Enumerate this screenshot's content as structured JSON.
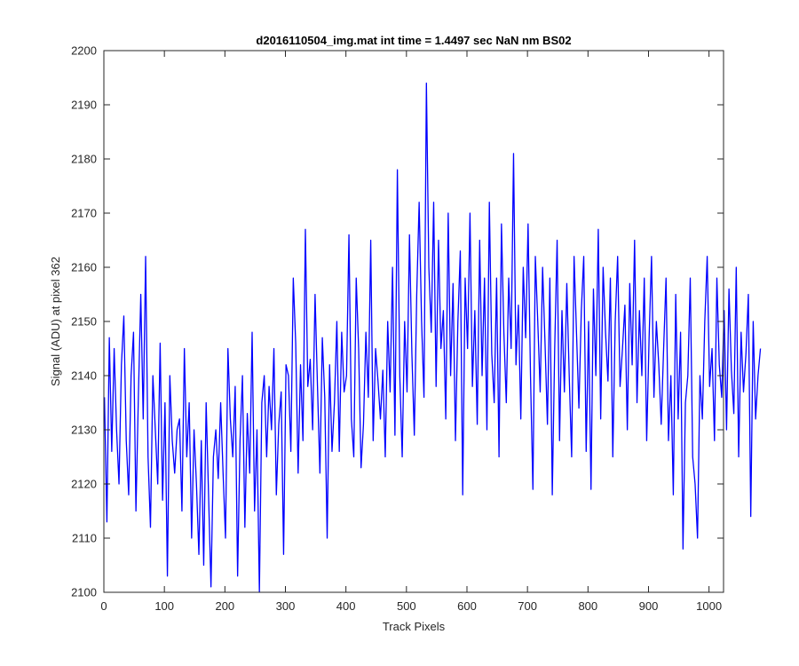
{
  "chart_data": {
    "type": "line",
    "title": "d2016110504_img.mat int time = 1.4497 sec  NaN nm BS02",
    "xlabel": "Track Pixels",
    "ylabel": "Signal (ADU) at pixel 362",
    "xlim": [
      0,
      1024
    ],
    "ylim": [
      2100,
      2200
    ],
    "xticks": [
      0,
      100,
      200,
      300,
      400,
      500,
      600,
      700,
      800,
      900,
      1000
    ],
    "yticks": [
      2100,
      2110,
      2120,
      2130,
      2140,
      2150,
      2160,
      2170,
      2180,
      2190,
      2200
    ],
    "grid": false,
    "series": [
      {
        "color": "#0000ff",
        "x_start": 1,
        "x_step": 4,
        "values": [
          2136,
          2113,
          2147,
          2126,
          2145,
          2130,
          2120,
          2142,
          2151,
          2128,
          2118,
          2140,
          2148,
          2115,
          2136,
          2155,
          2132,
          2162,
          2125,
          2112,
          2140,
          2130,
          2120,
          2146,
          2117,
          2135,
          2103,
          2140,
          2128,
          2122,
          2130,
          2132,
          2115,
          2145,
          2125,
          2135,
          2110,
          2130,
          2120,
          2107,
          2128,
          2105,
          2135,
          2118,
          2101,
          2125,
          2130,
          2121,
          2135,
          2122,
          2110,
          2145,
          2132,
          2125,
          2138,
          2103,
          2128,
          2140,
          2112,
          2133,
          2122,
          2148,
          2115,
          2130,
          2100,
          2135,
          2140,
          2125,
          2138,
          2130,
          2145,
          2118,
          2131,
          2137,
          2107,
          2142,
          2140,
          2126,
          2158,
          2146,
          2122,
          2142,
          2128,
          2167,
          2138,
          2143,
          2130,
          2155,
          2138,
          2122,
          2147,
          2136,
          2110,
          2142,
          2126,
          2135,
          2150,
          2126,
          2148,
          2137,
          2140,
          2166,
          2132,
          2125,
          2158,
          2145,
          2123,
          2131,
          2148,
          2136,
          2165,
          2128,
          2145,
          2139,
          2132,
          2141,
          2125,
          2150,
          2137,
          2160,
          2129,
          2178,
          2140,
          2125,
          2150,
          2137,
          2166,
          2144,
          2129,
          2155,
          2172,
          2150,
          2136,
          2194,
          2160,
          2148,
          2172,
          2138,
          2165,
          2145,
          2152,
          2132,
          2170,
          2140,
          2157,
          2128,
          2150,
          2163,
          2118,
          2158,
          2145,
          2170,
          2138,
          2152,
          2131,
          2165,
          2140,
          2158,
          2130,
          2172,
          2144,
          2135,
          2158,
          2125,
          2168,
          2148,
          2135,
          2158,
          2145,
          2181,
          2142,
          2153,
          2132,
          2160,
          2147,
          2168,
          2140,
          2119,
          2162,
          2150,
          2137,
          2160,
          2146,
          2131,
          2158,
          2118,
          2145,
          2165,
          2128,
          2152,
          2137,
          2157,
          2140,
          2125,
          2162,
          2148,
          2134,
          2152,
          2162,
          2126,
          2150,
          2119,
          2156,
          2140,
          2167,
          2132,
          2160,
          2148,
          2139,
          2158,
          2125,
          2150,
          2162,
          2138,
          2145,
          2153,
          2130,
          2157,
          2142,
          2165,
          2135,
          2152,
          2140,
          2158,
          2128,
          2147,
          2162,
          2136,
          2150,
          2142,
          2131,
          2145,
          2158,
          2128,
          2140,
          2118,
          2155,
          2132,
          2148,
          2108,
          2135,
          2140,
          2158,
          2125,
          2120,
          2110,
          2140,
          2132,
          2150,
          2162,
          2138,
          2145,
          2128,
          2158,
          2142,
          2136,
          2152,
          2130,
          2156,
          2141,
          2133,
          2160,
          2125,
          2148,
          2137,
          2144,
          2155,
          2114,
          2150,
          2132,
          2140,
          2145
        ]
      }
    ]
  }
}
